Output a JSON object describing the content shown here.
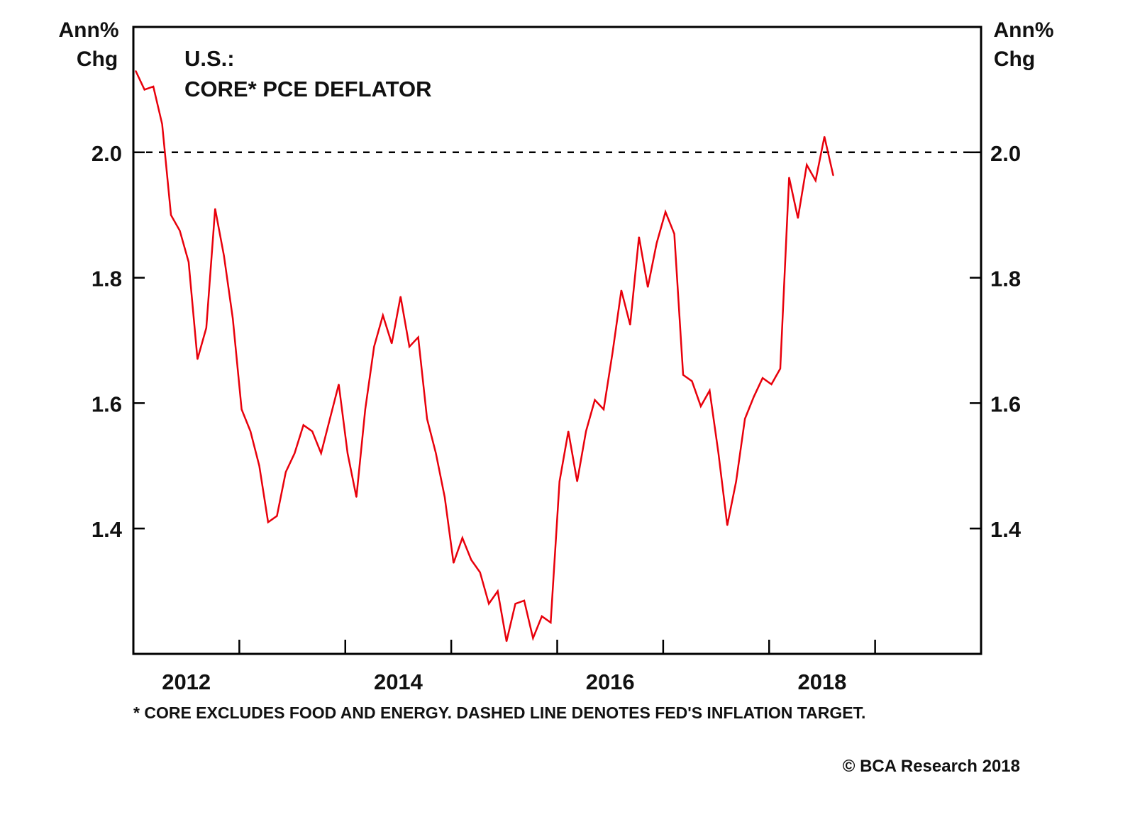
{
  "chart_data": {
    "type": "line",
    "title_line1": "U.S.:",
    "title_line2": "CORE* PCE DEFLATOR",
    "ylabel_left": [
      "Ann%",
      "Chg"
    ],
    "ylabel_right": [
      "Ann%",
      "Chg"
    ],
    "ylim": [
      1.2,
      2.2
    ],
    "yticks": [
      1.4,
      1.6,
      1.8,
      2.0
    ],
    "ytick_labels": [
      "1.4",
      "1.6",
      "1.8",
      "2.0"
    ],
    "xlim": [
      2012,
      2020
    ],
    "xticks": [
      2013,
      2014,
      2015,
      2016,
      2017,
      2018,
      2019
    ],
    "xtick_labels": [
      {
        "label": "2012",
        "at": 2012.5
      },
      {
        "label": "2014",
        "at": 2014.5
      },
      {
        "label": "2016",
        "at": 2016.5
      },
      {
        "label": "2018",
        "at": 2018.5
      }
    ],
    "reference_line": {
      "value": 2.0,
      "style": "dashed",
      "color": "#000000"
    },
    "series": [
      {
        "name": "Core PCE deflator",
        "color": "#e8000b",
        "start": "2012-01",
        "frequency": "monthly",
        "values": [
          2.13,
          2.1,
          2.105,
          2.045,
          1.9,
          1.875,
          1.825,
          1.67,
          1.72,
          1.91,
          1.835,
          1.735,
          1.59,
          1.555,
          1.5,
          1.41,
          1.42,
          1.49,
          1.52,
          1.565,
          1.555,
          1.52,
          1.575,
          1.63,
          1.52,
          1.45,
          1.59,
          1.69,
          1.74,
          1.695,
          1.77,
          1.69,
          1.705,
          1.575,
          1.52,
          1.45,
          1.345,
          1.385,
          1.35,
          1.33,
          1.28,
          1.3,
          1.22,
          1.28,
          1.285,
          1.225,
          1.26,
          1.25,
          1.475,
          1.555,
          1.475,
          1.555,
          1.605,
          1.59,
          1.68,
          1.78,
          1.725,
          1.865,
          1.785,
          1.855,
          1.905,
          1.87,
          1.645,
          1.635,
          1.595,
          1.62,
          1.52,
          1.405,
          1.475,
          1.575,
          1.61,
          1.64,
          1.63,
          1.655,
          1.96,
          1.895,
          1.98,
          1.955,
          2.025,
          1.963
        ]
      }
    ],
    "footnote": "* CORE EXCLUDES FOOD AND ENERGY. DASHED LINE DENOTES FED'S INFLATION TARGET.",
    "copyright": "© BCA Research 2018"
  }
}
